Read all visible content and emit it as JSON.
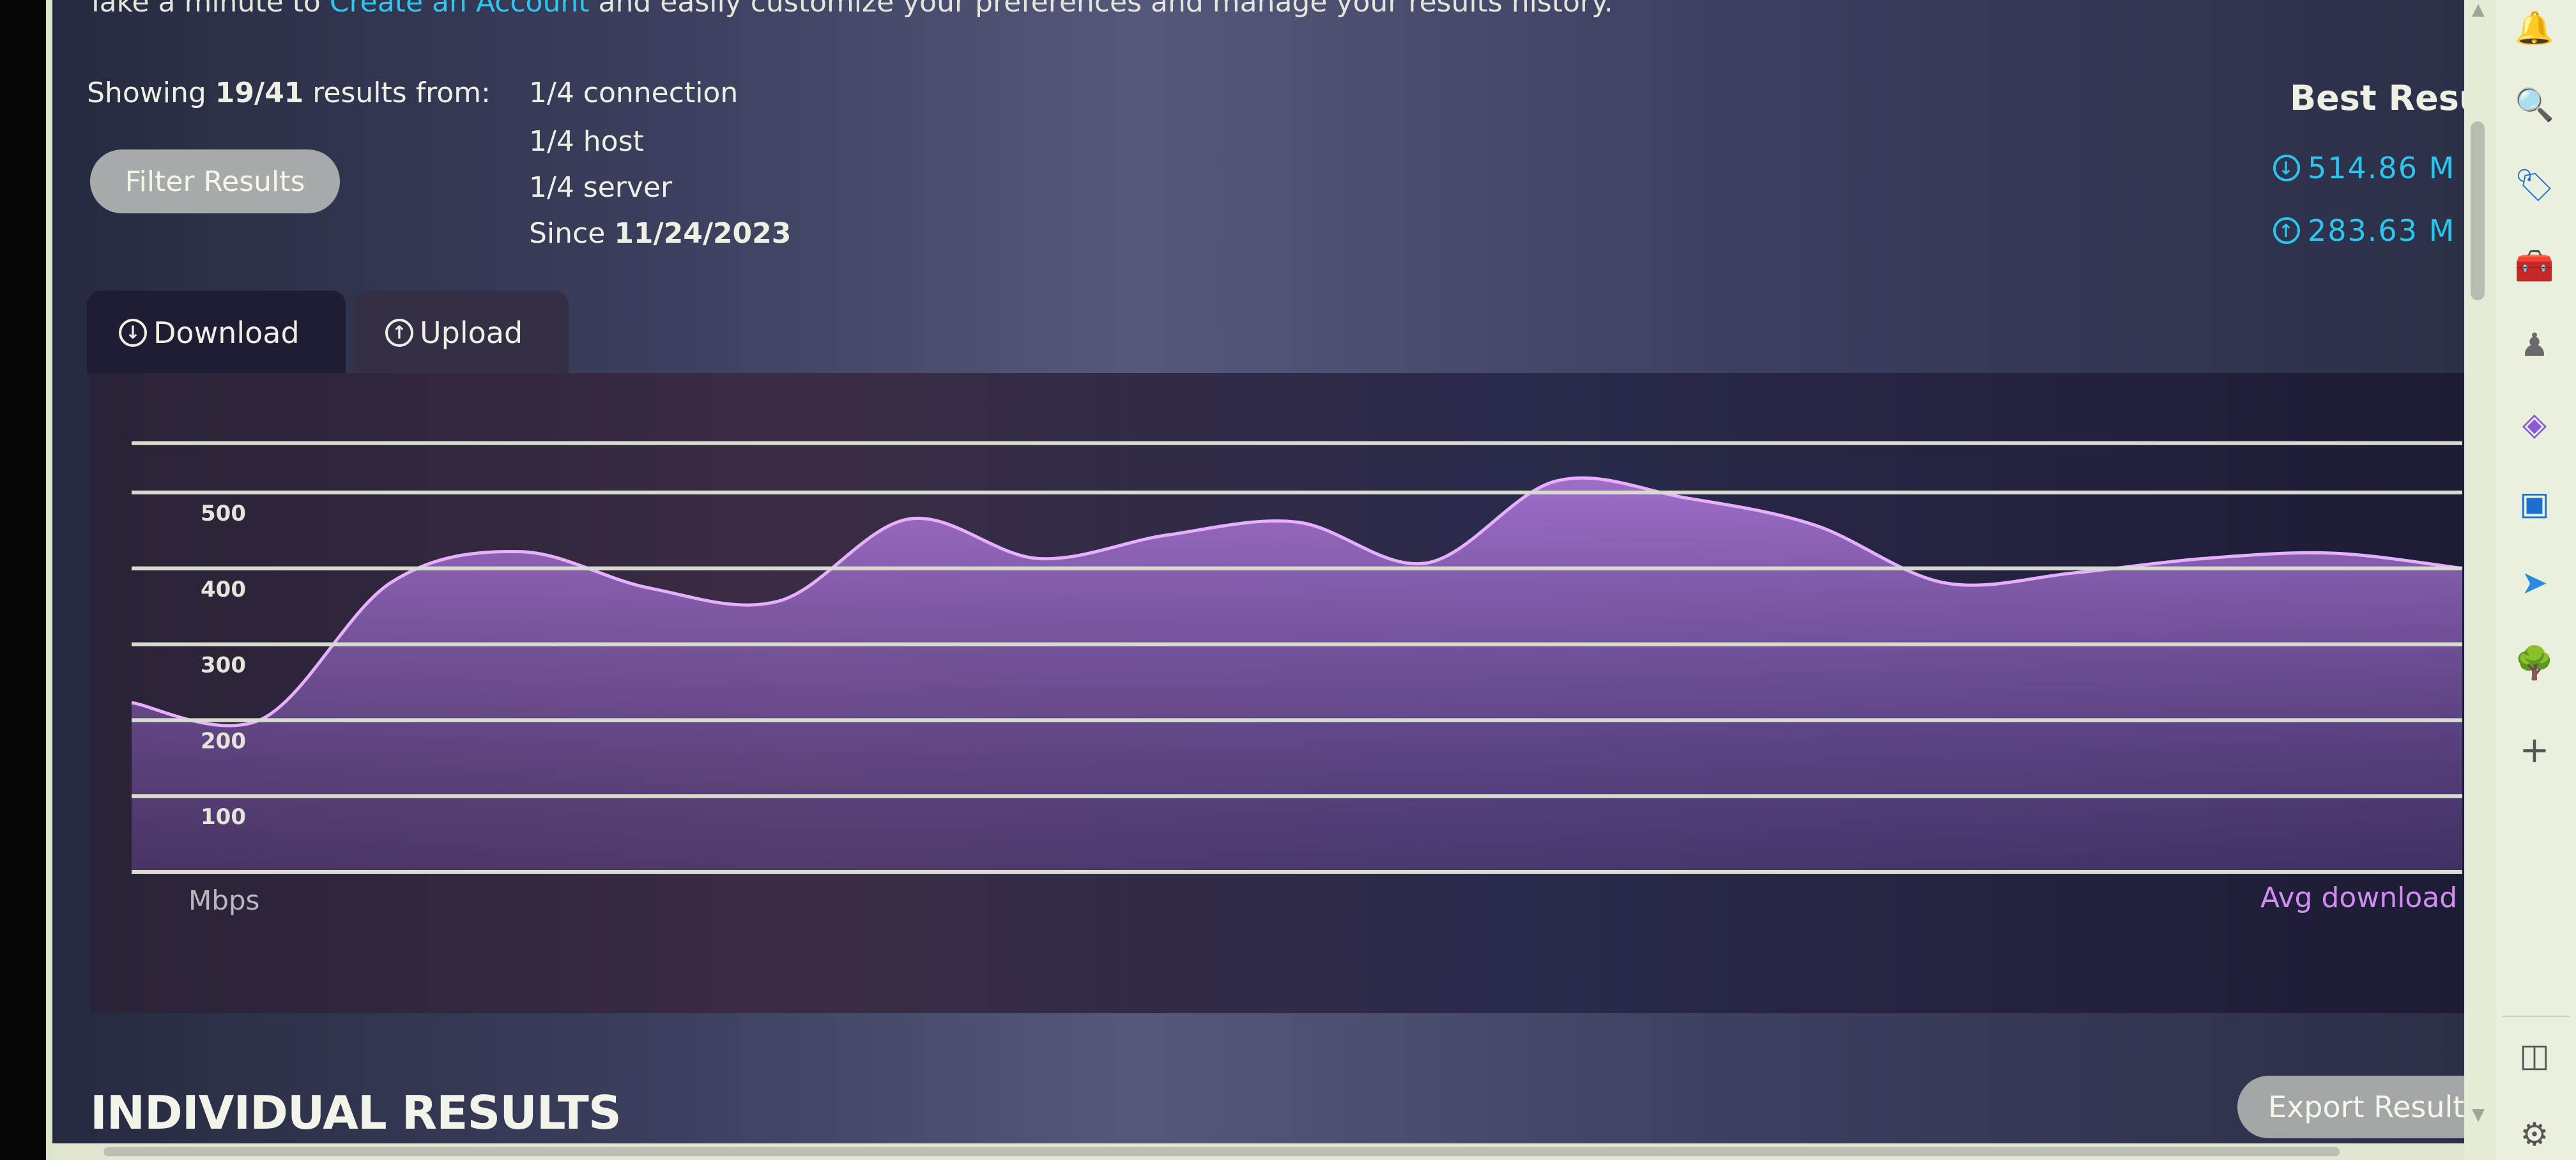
{
  "intro": {
    "prefix": "Take a minute to",
    "link": "Create an Account",
    "suffix": "and easily customize your preferences and manage your results history."
  },
  "summary": {
    "showing_label": "Showing",
    "showing_count": "19/41",
    "showing_suffix": "results from:"
  },
  "filter_button": "Filter Results",
  "facets": [
    "1/4 connection",
    "1/4 host",
    "1/4 server"
  ],
  "since": {
    "label": "Since",
    "date": "11/24/2023"
  },
  "best_results": {
    "title": "Best Resu",
    "download": "514.86 M",
    "upload": "283.63 M"
  },
  "tabs": [
    {
      "label": "Download",
      "icon": "arrow-down-circle-icon",
      "active": true
    },
    {
      "label": "Upload",
      "icon": "arrow-up-circle-icon",
      "active": false
    }
  ],
  "section_title": "INDIVIDUAL RESULTS",
  "export_button": "Export Result",
  "colors": {
    "accent": "#2bc6ec",
    "series": "#d48cf2"
  },
  "sidebar_icons": [
    "bell-icon",
    "search-icon",
    "tag-icon",
    "toolbox-icon",
    "chess-icon",
    "copilot-icon",
    "outlook-icon",
    "send-icon",
    "tree-icon",
    "plus-icon",
    "sidebar-toggle-icon",
    "settings-icon"
  ],
  "chart_data": {
    "type": "area",
    "ylabel": "Mbps",
    "legend": "Avg download",
    "legend_position": "bottom-right",
    "y_ticks": [
      100,
      200,
      300,
      400,
      500
    ],
    "ylim": [
      0,
      565
    ],
    "grid": true,
    "series": [
      {
        "name": "Avg download",
        "values": [
          223,
          201,
          381,
          422,
          374,
          357,
          465,
          413,
          444,
          461,
          407,
          515,
          493,
          457,
          381,
          394,
          413,
          420,
          400
        ]
      }
    ]
  }
}
